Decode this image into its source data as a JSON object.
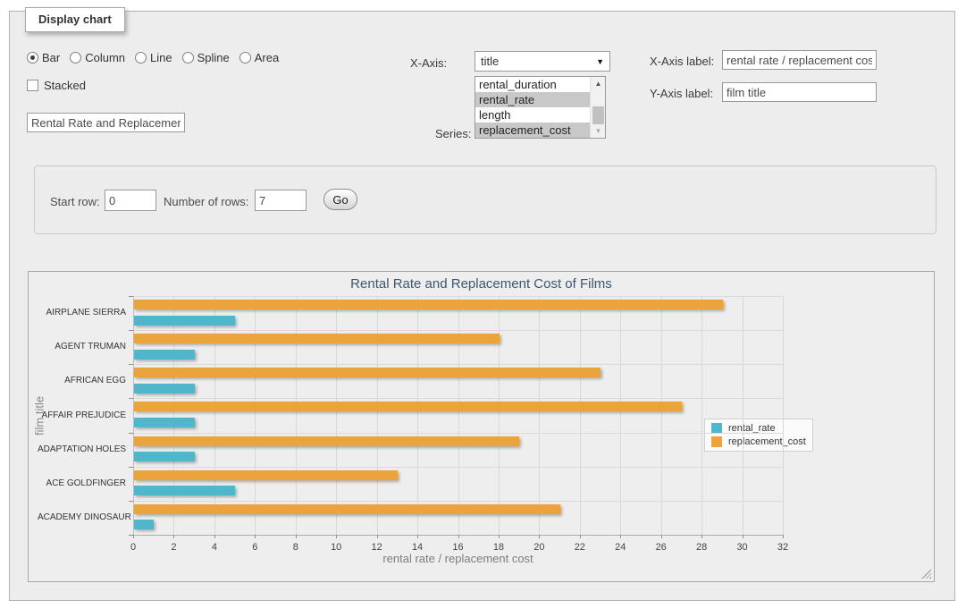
{
  "panel": {
    "legend": "Display chart"
  },
  "controls": {
    "chart_types": [
      {
        "label": "Bar",
        "selected": true
      },
      {
        "label": "Column",
        "selected": false
      },
      {
        "label": "Line",
        "selected": false
      },
      {
        "label": "Spline",
        "selected": false
      },
      {
        "label": "Area",
        "selected": false
      }
    ],
    "stacked": {
      "label": "Stacked",
      "checked": false
    },
    "title_input": {
      "value": "Rental Rate and Replacemer"
    },
    "x_axis": {
      "label": "X-Axis:",
      "value": "title"
    },
    "series_select": {
      "label": "Series:",
      "options": [
        {
          "label": "rental_duration",
          "selected": false
        },
        {
          "label": "rental_rate",
          "selected": true
        },
        {
          "label": "length",
          "selected": false
        },
        {
          "label": "replacement_cost",
          "selected": true
        }
      ]
    },
    "x_axis_label": {
      "label": "X-Axis label:",
      "value": "rental rate / replacement cost"
    },
    "y_axis_label": {
      "label": "Y-Axis label:",
      "value": "film title"
    }
  },
  "row_controls": {
    "start_row": {
      "label": "Start row:",
      "value": "0"
    },
    "num_rows": {
      "label": "Number of rows:",
      "value": "7"
    },
    "go_label": "Go"
  },
  "chart_data": {
    "type": "bar",
    "title": "Rental Rate and Replacement Cost of Films",
    "xlabel": "rental rate / replacement cost",
    "ylabel": "film title",
    "categories": [
      "AIRPLANE SIERRA",
      "AGENT TRUMAN",
      "AFRICAN EGG",
      "AFFAIR PREJUDICE",
      "ADAPTATION HOLES",
      "ACE GOLDFINGER",
      "ACADEMY DINOSAUR"
    ],
    "series": [
      {
        "name": "rental_rate",
        "color": "#4FB6CB",
        "values": [
          4.99,
          2.99,
          2.99,
          2.99,
          2.99,
          4.99,
          0.99
        ]
      },
      {
        "name": "replacement_cost",
        "color": "#EBA43B",
        "values": [
          28.99,
          17.99,
          22.99,
          26.99,
          18.99,
          12.99,
          20.99
        ]
      }
    ],
    "xlim": [
      0,
      32
    ],
    "xtick_step": 2,
    "grid": true,
    "legend_position": "right"
  }
}
